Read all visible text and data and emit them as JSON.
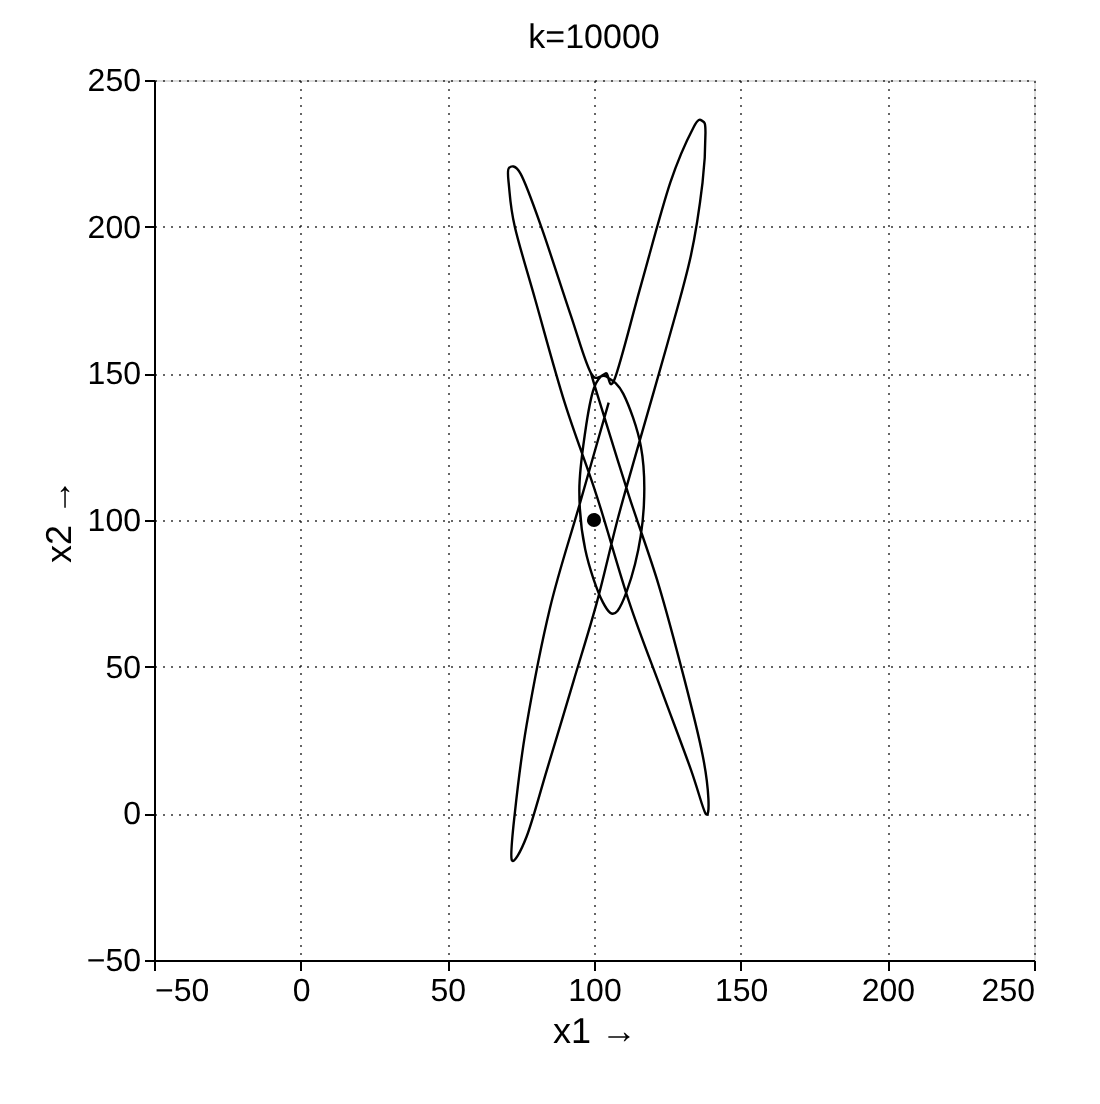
{
  "chart_data": {
    "type": "line",
    "title": "k=10000",
    "xlabel": "x1 →",
    "ylabel": "x2 →",
    "xlim": [
      -50,
      250
    ],
    "ylim": [
      -50,
      250
    ],
    "xticks": [
      -50,
      0,
      50,
      100,
      150,
      200,
      250
    ],
    "yticks": [
      -50,
      0,
      50,
      100,
      150,
      200,
      250
    ],
    "grid": true,
    "series": [
      {
        "color": "#000000",
        "x": [
          99,
          102,
          112,
          122,
          131,
          137,
          139,
          138,
          133,
          123,
          112,
          101,
          90,
          80,
          73,
          71,
          71,
          75,
          82,
          92,
          99,
          104,
          110,
          116,
          117,
          114,
          108,
          103,
          97,
          95,
          97,
          100,
          104,
          107,
          116,
          126,
          134,
          137,
          138,
          137,
          133,
          125,
          115,
          108,
          101,
          93,
          84,
          77,
          72,
          73,
          77,
          85,
          95,
          105
        ],
        "values": [
          150,
          140,
          108,
          78,
          45,
          20,
          5,
          0,
          15,
          42,
          72,
          108,
          140,
          175,
          200,
          214,
          220,
          218,
          200,
          170,
          150,
          149,
          143,
          125,
          105,
          85,
          69,
          72,
          90,
          110,
          130,
          145,
          150,
          148,
          180,
          215,
          234,
          236,
          232,
          215,
          190,
          160,
          125,
          100,
          72,
          45,
          15,
          -8,
          -16,
          0,
          30,
          70,
          105,
          140
        ]
      },
      {
        "type": "scatter",
        "color": "#000000",
        "marker": "circle",
        "x": [
          100
        ],
        "values": [
          100
        ]
      }
    ]
  }
}
